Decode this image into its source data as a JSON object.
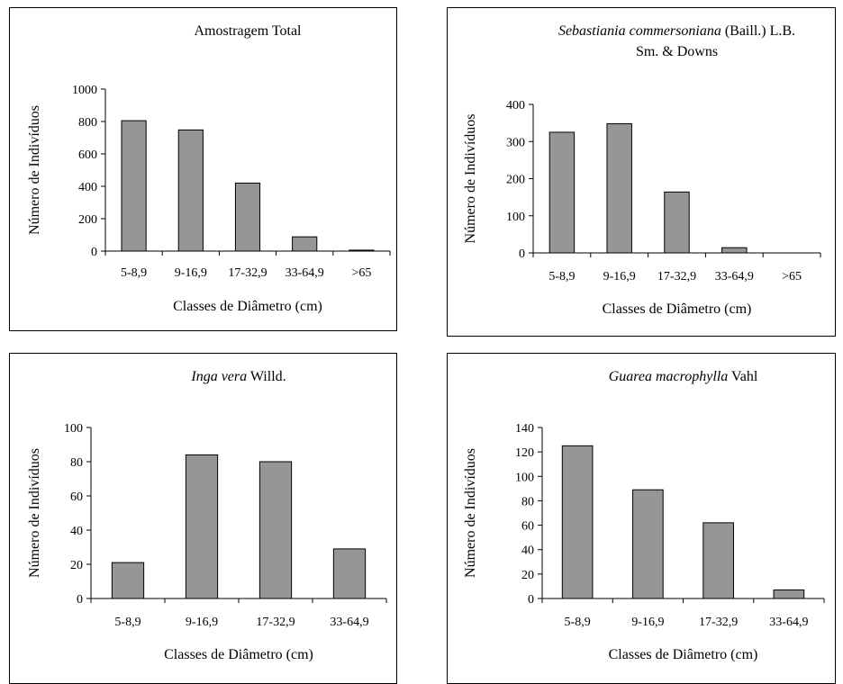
{
  "chart_data": [
    {
      "type": "bar",
      "title": [
        {
          "text": "Amostragem Total",
          "italic": false
        }
      ],
      "title_line2": "",
      "xlabel": "Classes de Diâmetro (cm)",
      "ylabel": "Número de Indivíduos",
      "categories": [
        "5-8,9",
        "9-16,9",
        "17-32,9",
        "33-64,9",
        ">65"
      ],
      "values": [
        805,
        748,
        420,
        88,
        6
      ],
      "ylim": [
        0,
        1000
      ],
      "yticks": [
        0,
        200,
        400,
        600,
        800,
        1000
      ],
      "bar_color": "#969696"
    },
    {
      "type": "bar",
      "title": [
        {
          "text": "Sebastiania commersoniana",
          "italic": true
        },
        {
          "text": " (Baill.) L.B.",
          "italic": false
        }
      ],
      "title_line2": "Sm. & Downs",
      "xlabel": "Classes de Diâmetro (cm)",
      "ylabel": "Número de Indivíduos",
      "categories": [
        "5-8,9",
        "9-16,9",
        "17-32,9",
        "33-64,9",
        ">65"
      ],
      "values": [
        325,
        348,
        164,
        14,
        0
      ],
      "ylim": [
        0,
        400
      ],
      "yticks": [
        0,
        100,
        200,
        300,
        400
      ],
      "bar_color": "#969696"
    },
    {
      "type": "bar",
      "title": [
        {
          "text": "Inga vera",
          "italic": true
        },
        {
          "text": " Willd.",
          "italic": false
        }
      ],
      "title_line2": "",
      "xlabel": "Classes de Diâmetro (cm)",
      "ylabel": "Número de Indivíduos",
      "categories": [
        "5-8,9",
        "9-16,9",
        "17-32,9",
        "33-64,9"
      ],
      "values": [
        21,
        84,
        80,
        29
      ],
      "ylim": [
        0,
        100
      ],
      "yticks": [
        0,
        20,
        40,
        60,
        80,
        100
      ],
      "bar_color": "#969696"
    },
    {
      "type": "bar",
      "title": [
        {
          "text": "Guarea macrophylla",
          "italic": true
        },
        {
          "text": " Vahl",
          "italic": false
        }
      ],
      "title_line2": "",
      "xlabel": "Classes de Diâmetro (cm)",
      "ylabel": "Número de Indivíduos",
      "categories": [
        "5-8,9",
        "9-16,9",
        "17-32,9",
        "33-64,9"
      ],
      "values": [
        125,
        89,
        62,
        7
      ],
      "ylim": [
        0,
        140
      ],
      "yticks": [
        0,
        20,
        40,
        60,
        80,
        100,
        120,
        140
      ],
      "bar_color": "#969696"
    }
  ]
}
